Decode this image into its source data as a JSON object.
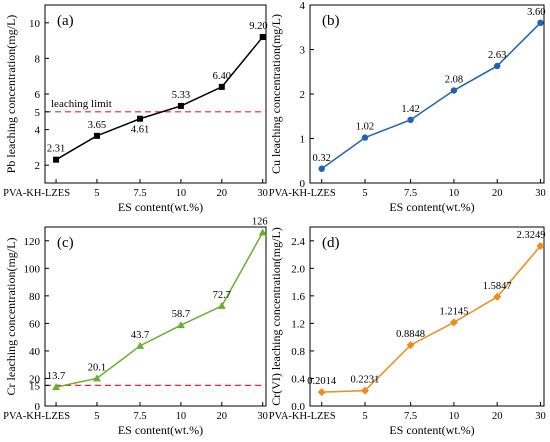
{
  "chart_data": [
    {
      "type": "line",
      "panel_label": "(a)",
      "categories": [
        "PVA-KH-LZES",
        "5",
        "7.5",
        "10",
        "20",
        "30"
      ],
      "values": [
        2.31,
        3.65,
        4.61,
        5.33,
        6.4,
        9.2
      ],
      "value_labels": [
        "2.31",
        "3.65",
        "4.61",
        "5.33",
        "6.40",
        "9.20"
      ],
      "xlabel": "ES content(wt.%)",
      "ylabel": "Pb leaching concentration(mg/L)",
      "ylim": [
        1,
        11
      ],
      "yticks": [
        "2",
        "4",
        "5",
        "6",
        "8",
        "10"
      ],
      "ytick_values": [
        2,
        4,
        5,
        6,
        8,
        10
      ],
      "color": "#000000",
      "marker": "square",
      "reference_line": {
        "value": 5,
        "label": "leaching limit",
        "color": "#e8262b"
      }
    },
    {
      "type": "line",
      "panel_label": "(b)",
      "categories": [
        "PVA-KH-LZES",
        "5",
        "7.5",
        "10",
        "20",
        "30"
      ],
      "values": [
        0.32,
        1.02,
        1.42,
        2.08,
        2.63,
        3.6
      ],
      "value_labels": [
        "0.32",
        "1.02",
        "1.42",
        "2.08",
        "2.63",
        "3.60"
      ],
      "xlabel": "ES content(wt.%)",
      "ylabel": "Cu leaching concentration(mg/L)",
      "ylim": [
        0,
        4
      ],
      "yticks": [
        "0",
        "1",
        "2",
        "3",
        "4"
      ],
      "ytick_values": [
        0,
        1,
        2,
        3,
        4
      ],
      "color": "#1f63b4",
      "marker": "circle"
    },
    {
      "type": "line",
      "panel_label": "(c)",
      "categories": [
        "PVA-KH-LZES",
        "5",
        "7.5",
        "10",
        "20",
        "30"
      ],
      "values": [
        13.7,
        20.1,
        43.7,
        58.7,
        72.7,
        126
      ],
      "value_labels": [
        "13.7",
        "20.1",
        "43.7",
        "58.7",
        "72.7",
        "126"
      ],
      "xlabel": "ES content(wt.%)",
      "ylabel": "Cr leaching concentration(mg/L)",
      "ylim": [
        0,
        130
      ],
      "yticks": [
        "0",
        "15",
        "20",
        "40",
        "60",
        "80",
        "100",
        "120"
      ],
      "ytick_values": [
        0,
        15,
        20,
        40,
        60,
        80,
        100,
        120
      ],
      "color": "#6ab02e",
      "marker": "triangle",
      "reference_line": {
        "value": 15,
        "label": "",
        "color": "#e8262b"
      }
    },
    {
      "type": "line",
      "panel_label": "(d)",
      "categories": [
        "PVA-KH-LZES",
        "5",
        "7.5",
        "10",
        "20",
        "30"
      ],
      "values": [
        0.2014,
        0.2231,
        0.8848,
        1.2145,
        1.5847,
        2.3249
      ],
      "value_labels": [
        "0.2014",
        "0.2231",
        "0.8848",
        "1.2145",
        "1.5847",
        "2.3249"
      ],
      "xlabel": "ES content(wt.%)",
      "ylabel": "Cr(VI) leaching concentration(mg/L)",
      "ylim": [
        0,
        2.6
      ],
      "yticks": [
        "0.0",
        "0.4",
        "0.8",
        "1.2",
        "1.6",
        "2.0",
        "2.4"
      ],
      "ytick_values": [
        0,
        0.4,
        0.8,
        1.2,
        1.6,
        2.0,
        2.4
      ],
      "color": "#f28a1c",
      "marker": "diamond"
    }
  ]
}
